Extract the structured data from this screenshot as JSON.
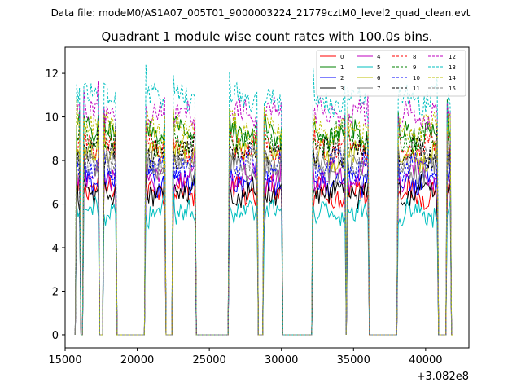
{
  "chart_data": {
    "type": "line",
    "suptitle": "Data file: modeM0/AS1A07_005T01_9000003224_21779cztM0_level2_quad_clean.evt",
    "title": "Quadrant 1 module wise count rates with 100.0s bins.",
    "xlabel": "",
    "ylabel": "",
    "x_offset_label": "+3.082e8",
    "xlim": [
      15000,
      43000
    ],
    "ylim": [
      -0.6,
      13.2
    ],
    "x_ticks": [
      15000,
      20000,
      25000,
      30000,
      35000,
      40000
    ],
    "x_tick_labels": [
      "15000",
      "20000",
      "25000",
      "30000",
      "35000",
      "40000"
    ],
    "y_ticks": [
      0,
      2,
      4,
      6,
      8,
      10,
      12
    ],
    "y_tick_labels": [
      "0",
      "2",
      "4",
      "6",
      "8",
      "10",
      "12"
    ],
    "legend_position": "top-right",
    "bin_size_s": 100,
    "segments": [
      {
        "start": 15800,
        "end": 16000
      },
      {
        "start": 16300,
        "end": 17300
      },
      {
        "start": 17700,
        "end": 18500
      },
      {
        "start": 20600,
        "end": 21900
      },
      {
        "start": 22500,
        "end": 24000
      },
      {
        "start": 26400,
        "end": 28300
      },
      {
        "start": 28800,
        "end": 30000
      },
      {
        "start": 32200,
        "end": 34400
      },
      {
        "start": 34600,
        "end": 36000
      },
      {
        "start": 38100,
        "end": 40800
      },
      {
        "start": 41500,
        "end": 41700
      }
    ],
    "series": [
      {
        "name": "0",
        "color": "#ff0000",
        "dashed": false,
        "level": 6.5
      },
      {
        "name": "1",
        "color": "#008000",
        "dashed": false,
        "level": 9.2
      },
      {
        "name": "2",
        "color": "#0000ff",
        "dashed": false,
        "level": 7.1
      },
      {
        "name": "3",
        "color": "#000000",
        "dashed": false,
        "level": 6.6
      },
      {
        "name": "4",
        "color": "#bf00bf",
        "dashed": false,
        "level": 7.3
      },
      {
        "name": "5",
        "color": "#00bfbf",
        "dashed": false,
        "level": 5.6
      },
      {
        "name": "6",
        "color": "#bfbf00",
        "dashed": false,
        "level": 8.2
      },
      {
        "name": "7",
        "color": "#808080",
        "dashed": false,
        "level": 7.6
      },
      {
        "name": "8",
        "color": "#ff0000",
        "dashed": true,
        "level": 8.6
      },
      {
        "name": "9",
        "color": "#008000",
        "dashed": true,
        "level": 9.0
      },
      {
        "name": "10",
        "color": "#0000ff",
        "dashed": true,
        "level": 7.8
      },
      {
        "name": "11",
        "color": "#000000",
        "dashed": true,
        "level": 8.4
      },
      {
        "name": "12",
        "color": "#bf00bf",
        "dashed": true,
        "level": 10.1
      },
      {
        "name": "13",
        "color": "#00bfbf",
        "dashed": true,
        "level": 10.8
      },
      {
        "name": "14",
        "color": "#bfbf00",
        "dashed": true,
        "level": 9.5
      },
      {
        "name": "15",
        "color": "#808080",
        "dashed": true,
        "level": 8.0
      }
    ]
  }
}
